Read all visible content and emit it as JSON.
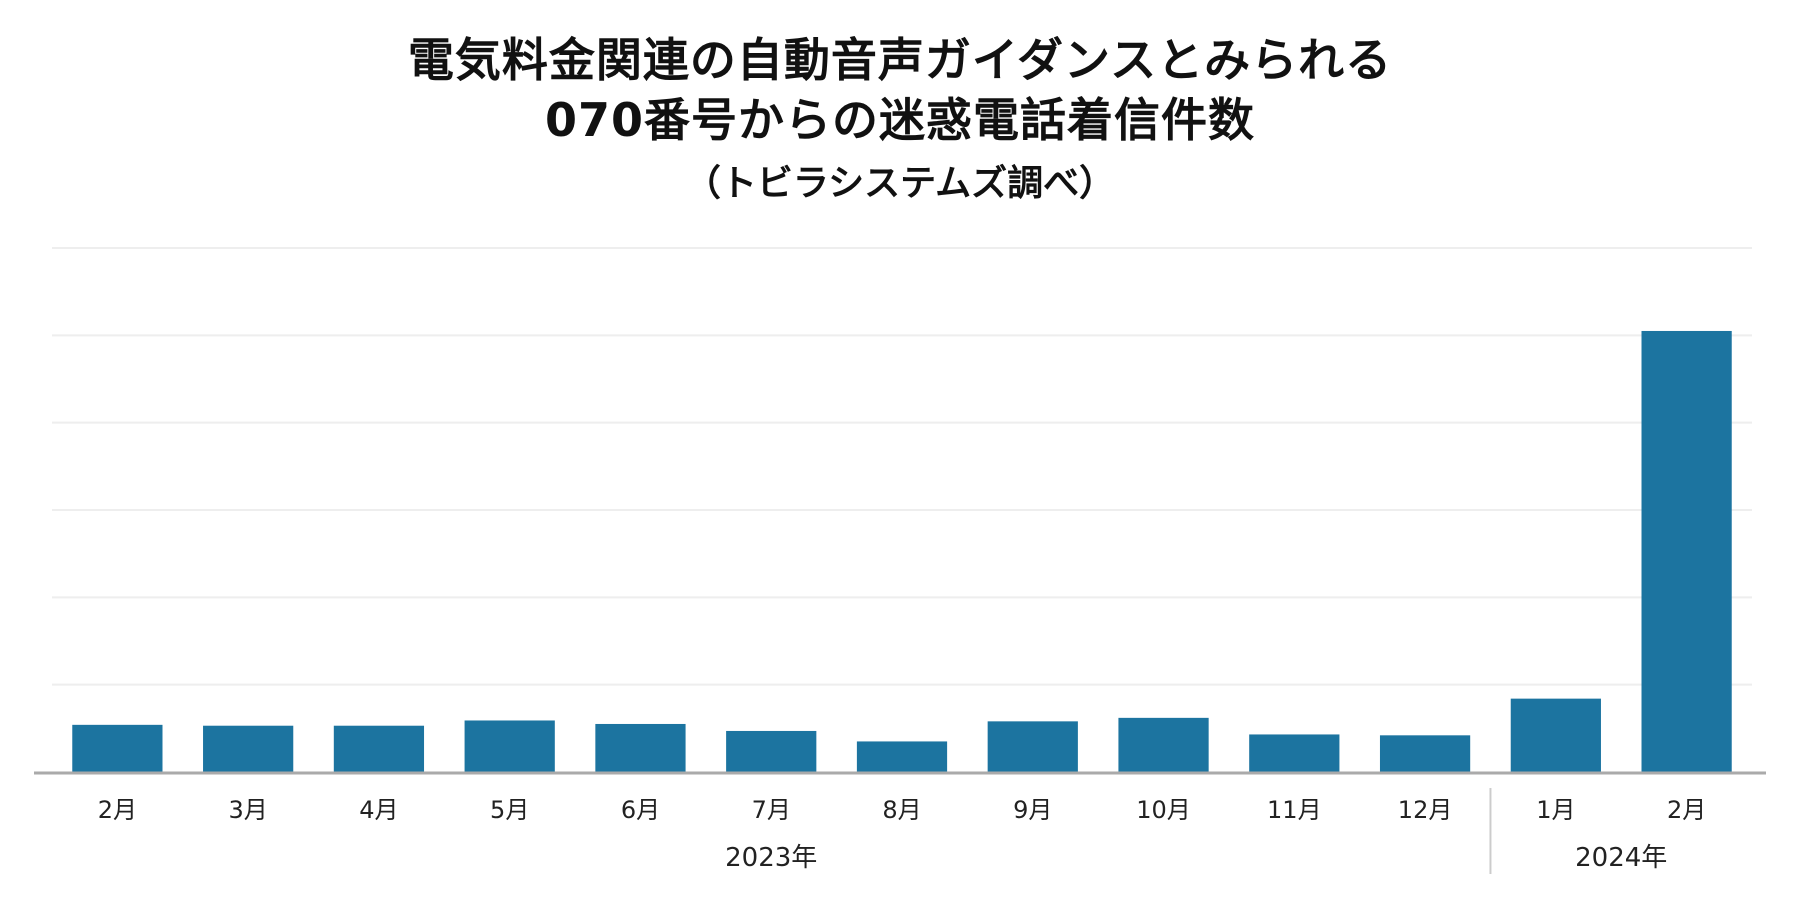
{
  "chart_data": {
    "type": "bar",
    "title_lines": [
      "電気料金関連の自動音声ガイダンスとみられる",
      "070番号からの迷惑電話着信件数"
    ],
    "subtitle": "（トビラシステムズ調べ）",
    "categories": [
      "2月",
      "3月",
      "4月",
      "5月",
      "6月",
      "7月",
      "8月",
      "9月",
      "10月",
      "11月",
      "12月",
      "1月",
      "2月"
    ],
    "groups": [
      {
        "label": "2023年",
        "start": 0,
        "end": 10
      },
      {
        "label": "2024年",
        "start": 11,
        "end": 12
      }
    ],
    "values": [
      0.54,
      0.53,
      0.53,
      0.59,
      0.55,
      0.47,
      0.35,
      0.58,
      0.62,
      0.43,
      0.42,
      0.84,
      5.05
    ],
    "ylim": [
      0,
      6
    ],
    "grid": true,
    "xlabel": "",
    "ylabel": "",
    "bar_color": "#1c74a0",
    "grid_color": "#eeeeee",
    "axis_color": "#aaaaaa"
  }
}
